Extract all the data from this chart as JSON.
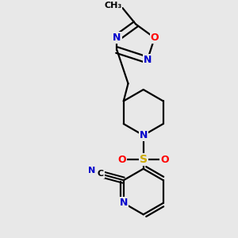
{
  "background_color": "#e8e8e8",
  "bond_color": "#000000",
  "N_color": "#0000cc",
  "O_color": "#ff0000",
  "S_color": "#ccaa00",
  "C_color": "#000000",
  "figsize": [
    3.0,
    3.0
  ],
  "dpi": 100,
  "xlim": [
    0,
    3.0
  ],
  "ylim": [
    0,
    3.0
  ]
}
